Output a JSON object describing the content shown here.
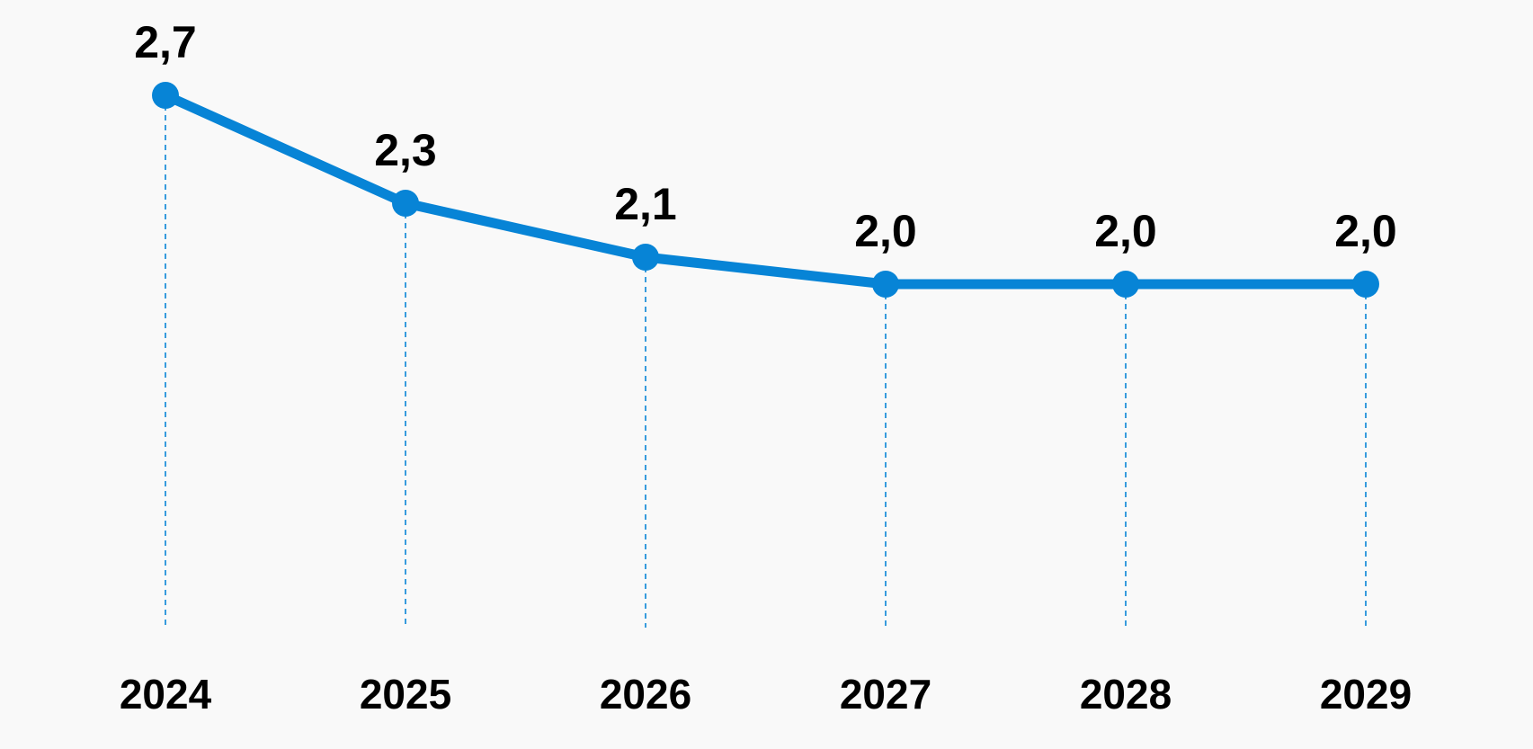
{
  "colors": {
    "background": "#f9f9f9",
    "series_line": "#0784d6",
    "text": "#000000"
  },
  "chart_data": {
    "type": "line",
    "title": "",
    "xlabel": "",
    "ylabel": "",
    "x": [
      "2024",
      "2025",
      "2026",
      "2027",
      "2028",
      "2029"
    ],
    "values": [
      2.7,
      2.3,
      2.1,
      2.0,
      2.0,
      2.0
    ],
    "data_labels": [
      "2,7",
      "2,3",
      "2,1",
      "2,0",
      "2,0",
      "2,0"
    ],
    "ylim": [
      1.3,
      2.9
    ],
    "grid": false,
    "legend": "none",
    "drop_lines": "dashed",
    "markers": "filled-circle"
  }
}
